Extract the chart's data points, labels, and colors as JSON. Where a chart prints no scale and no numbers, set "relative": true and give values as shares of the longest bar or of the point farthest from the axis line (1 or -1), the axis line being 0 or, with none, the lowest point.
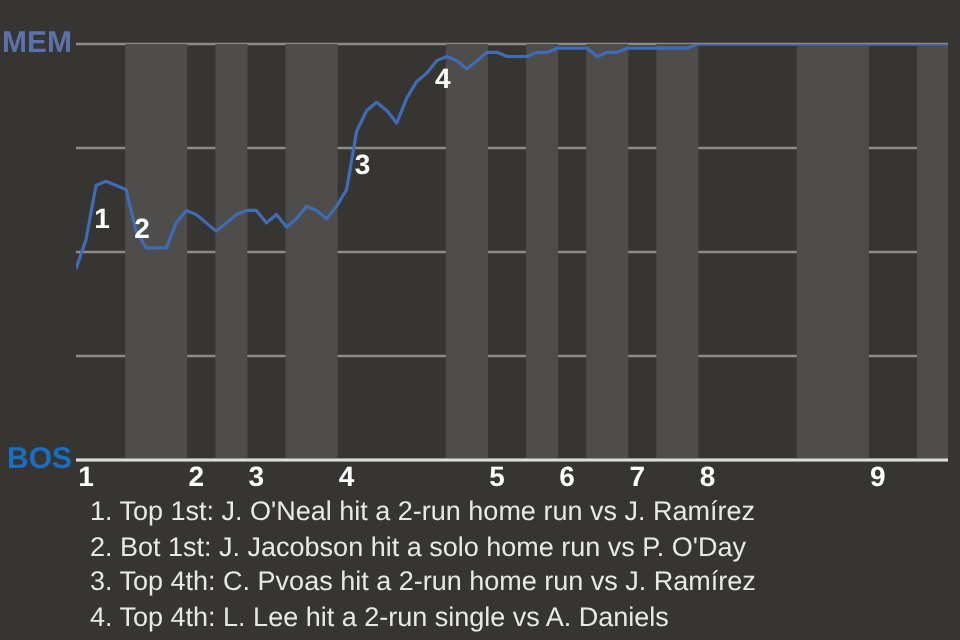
{
  "chart_data": {
    "type": "line",
    "relative": true,
    "grid": "y",
    "categories": [
      null,
      "1",
      null,
      null,
      null,
      null,
      null,
      null,
      null,
      null,
      null,
      null,
      "2",
      null,
      null,
      null,
      null,
      null,
      "3",
      null,
      null,
      null,
      null,
      null,
      null,
      null,
      null,
      "4",
      null,
      null,
      null,
      null,
      null,
      null,
      null,
      null,
      null,
      null,
      null,
      null,
      null,
      null,
      "5",
      null,
      null,
      null,
      null,
      null,
      null,
      "6",
      null,
      null,
      null,
      null,
      null,
      null,
      "7",
      null,
      null,
      null,
      null,
      null,
      null,
      "8",
      null,
      null,
      null,
      null,
      null,
      null,
      null,
      null,
      null,
      null,
      null,
      null,
      null,
      null,
      null,
      null,
      "9",
      null,
      null,
      null,
      null,
      null,
      null,
      null
    ],
    "series": [
      {
        "color": "#3f6cb5",
        "values": [
          0.46,
          0.53,
          0.66,
          0.67,
          0.66,
          0.65,
          0.55,
          0.51,
          0.51,
          0.51,
          0.57,
          0.6,
          0.59,
          0.57,
          0.55,
          0.57,
          0.59,
          0.6,
          0.6,
          0.57,
          0.59,
          0.56,
          0.58,
          0.61,
          0.6,
          0.58,
          0.61,
          0.65,
          0.79,
          0.84,
          0.86,
          0.84,
          0.81,
          0.87,
          0.91,
          0.93,
          0.96,
          0.97,
          0.96,
          0.94,
          0.96,
          0.98,
          0.98,
          0.97,
          0.97,
          0.97,
          0.98,
          0.98,
          0.99,
          0.99,
          0.99,
          0.99,
          0.97,
          0.98,
          0.98,
          0.99,
          0.99,
          0.99,
          0.99,
          0.99,
          0.99,
          0.99,
          1,
          1,
          1,
          1,
          1,
          1,
          1,
          1,
          1,
          1,
          1,
          1,
          1,
          1,
          1,
          1,
          1,
          1,
          1,
          1,
          1,
          1,
          1,
          1,
          1,
          1
        ]
      }
    ],
    "legend": false,
    "annotations": [
      "MEM",
      "BOS",
      "1",
      "2",
      "3",
      "4",
      "1. Top 1st: J. O'Neal hit a 2-run home run vs J. Ramírez",
      "2. Bot 1st: J. Jacobson hit a solo home run vs P. O'Day",
      "3. Top 4th: C. Pvoas hit a 2-run home run vs J. Ramírez",
      "4. Top 4th: L. Lee hit a 2-run single vs A. Daniels"
    ]
  }
}
